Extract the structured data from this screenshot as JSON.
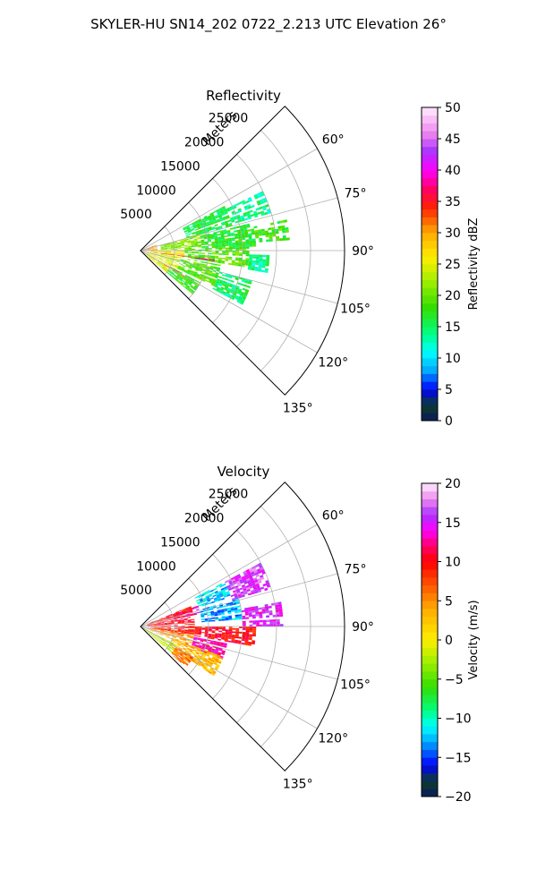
{
  "suptitle": "SKYLER-HU  SN14_202  0722_2.213 UTC Elevation 26°",
  "chart_data": [
    {
      "type": "ppi-sector",
      "title": "Reflectivity",
      "range_label": "Meters",
      "range_ticks": [
        "5000",
        "10000",
        "15000",
        "20000",
        "25000"
      ],
      "range_tick_values": [
        5000,
        10000,
        15000,
        20000,
        25000
      ],
      "r_max": 30000,
      "azimuth_ticks": [
        "60°",
        "75°",
        "90°",
        "105°",
        "120°",
        "135°"
      ],
      "azimuth_tick_values": [
        60,
        75,
        90,
        105,
        120,
        135
      ],
      "azimuth_range": [
        45,
        135
      ],
      "grid": true,
      "colorbar": {
        "label": "Reflectivity dBZ",
        "min": 0,
        "max": 50,
        "ticks": [
          "0",
          "5",
          "10",
          "15",
          "20",
          "25",
          "30",
          "35",
          "40",
          "45",
          "50"
        ],
        "tick_values": [
          0,
          5,
          10,
          15,
          20,
          25,
          30,
          35,
          40,
          45,
          50
        ],
        "color_stops": [
          {
            "value": 0,
            "color": "#0a1a5c"
          },
          {
            "value": 2.5,
            "color": "#0d3d2a"
          },
          {
            "value": 5,
            "color": "#0000ff"
          },
          {
            "value": 8,
            "color": "#00a8ff"
          },
          {
            "value": 11,
            "color": "#00ffff"
          },
          {
            "value": 14,
            "color": "#00ff80"
          },
          {
            "value": 18,
            "color": "#33dd00"
          },
          {
            "value": 22,
            "color": "#99ee00"
          },
          {
            "value": 26,
            "color": "#ffee00"
          },
          {
            "value": 30,
            "color": "#ffaa00"
          },
          {
            "value": 34,
            "color": "#ff2200"
          },
          {
            "value": 37,
            "color": "#ff0066"
          },
          {
            "value": 40,
            "color": "#ff00ff"
          },
          {
            "value": 43,
            "color": "#aa33ff"
          },
          {
            "value": 46,
            "color": "#ee88ee"
          },
          {
            "value": 50,
            "color": "#ffeeff"
          }
        ]
      },
      "echo_regions": [
        {
          "az": [
            62,
            75
          ],
          "r": [
            7000,
            14000
          ],
          "value": 16
        },
        {
          "az": [
            64,
            74
          ],
          "r": [
            14000,
            20000
          ],
          "value": 14
        },
        {
          "az": [
            75,
            88
          ],
          "r": [
            3000,
            9000
          ],
          "value": 21
        },
        {
          "az": [
            76,
            88
          ],
          "r": [
            9000,
            17000
          ],
          "value": 17
        },
        {
          "az": [
            78,
            86
          ],
          "r": [
            17000,
            22000
          ],
          "value": 18
        },
        {
          "az": [
            88,
            100
          ],
          "r": [
            1500,
            6500
          ],
          "value": 26
        },
        {
          "az": [
            88,
            100
          ],
          "r": [
            6500,
            16000
          ],
          "value": 19
        },
        {
          "az": [
            92,
            100
          ],
          "r": [
            16000,
            19000
          ],
          "value": 14
        },
        {
          "az": [
            100,
            116
          ],
          "r": [
            1000,
            6000
          ],
          "value": 24
        },
        {
          "az": [
            100,
            116
          ],
          "r": [
            6000,
            12000
          ],
          "value": 19
        },
        {
          "az": [
            104,
            118
          ],
          "r": [
            12000,
            17000
          ],
          "value": 15
        },
        {
          "az": [
            116,
            130
          ],
          "r": [
            500,
            5000
          ],
          "value": 25
        },
        {
          "az": [
            118,
            130
          ],
          "r": [
            5000,
            10000
          ],
          "value": 18
        },
        {
          "az": [
            70,
            90
          ],
          "r": [
            0,
            2500
          ],
          "value": 31
        },
        {
          "az": [
            96,
            98
          ],
          "r": [
            2000,
            11000
          ],
          "value": 36
        },
        {
          "az": [
            119,
            121
          ],
          "r": [
            1000,
            8000
          ],
          "value": 33
        }
      ]
    },
    {
      "type": "ppi-sector",
      "title": "Velocity",
      "range_label": "Meters",
      "range_ticks": [
        "5000",
        "10000",
        "15000",
        "20000",
        "25000"
      ],
      "range_tick_values": [
        5000,
        10000,
        15000,
        20000,
        25000
      ],
      "r_max": 30000,
      "azimuth_ticks": [
        "60°",
        "75°",
        "90°",
        "105°",
        "120°",
        "135°"
      ],
      "azimuth_tick_values": [
        60,
        75,
        90,
        105,
        120,
        135
      ],
      "azimuth_range": [
        45,
        135
      ],
      "grid": true,
      "colorbar": {
        "label": "Velocity (m/s)",
        "min": -20,
        "max": 20,
        "ticks": [
          "−20",
          "−15",
          "−10",
          "−5",
          "0",
          "5",
          "10",
          "15",
          "20"
        ],
        "tick_values": [
          -20,
          -15,
          -10,
          -5,
          0,
          5,
          10,
          15,
          20
        ],
        "color_stops": [
          {
            "value": -20,
            "color": "#0a1a5c"
          },
          {
            "value": -18,
            "color": "#0d3d2a"
          },
          {
            "value": -16,
            "color": "#0000ff"
          },
          {
            "value": -13,
            "color": "#00a8ff"
          },
          {
            "value": -11,
            "color": "#00ffff"
          },
          {
            "value": -9,
            "color": "#00ff80"
          },
          {
            "value": -6,
            "color": "#33dd00"
          },
          {
            "value": -3,
            "color": "#99ee00"
          },
          {
            "value": 0,
            "color": "#ffee00"
          },
          {
            "value": 4,
            "color": "#ffaa00"
          },
          {
            "value": 7,
            "color": "#ff5500"
          },
          {
            "value": 10,
            "color": "#ff0000"
          },
          {
            "value": 12,
            "color": "#ff0066"
          },
          {
            "value": 14,
            "color": "#ff00ff"
          },
          {
            "value": 16,
            "color": "#aa33ff"
          },
          {
            "value": 18,
            "color": "#ee88ee"
          },
          {
            "value": 20,
            "color": "#ffeeff"
          }
        ]
      },
      "echo_regions": [
        {
          "az": [
            62,
            72
          ],
          "r": [
            9000,
            14000
          ],
          "value": -12
        },
        {
          "az": [
            62,
            74
          ],
          "r": [
            14000,
            20000
          ],
          "value": 16
        },
        {
          "az": [
            70,
            78
          ],
          "r": [
            5000,
            9000
          ],
          "value": 13
        },
        {
          "az": [
            74,
            86
          ],
          "r": [
            9000,
            15000
          ],
          "value": -13
        },
        {
          "az": [
            80,
            90
          ],
          "r": [
            15000,
            21000
          ],
          "value": 15
        },
        {
          "az": [
            68,
            90
          ],
          "r": [
            1000,
            8000
          ],
          "value": 10
        },
        {
          "az": [
            90,
            100
          ],
          "r": [
            1500,
            8000
          ],
          "value": 9
        },
        {
          "az": [
            90,
            100
          ],
          "r": [
            8000,
            17000
          ],
          "value": 10
        },
        {
          "az": [
            100,
            112
          ],
          "r": [
            1000,
            8000
          ],
          "value": 5
        },
        {
          "az": [
            100,
            112
          ],
          "r": [
            8000,
            13000
          ],
          "value": 13
        },
        {
          "az": [
            110,
            124
          ],
          "r": [
            5000,
            13000
          ],
          "value": 3
        },
        {
          "az": [
            116,
            130
          ],
          "r": [
            500,
            6000
          ],
          "value": -2
        },
        {
          "az": [
            120,
            132
          ],
          "r": [
            6000,
            9000
          ],
          "value": 6
        }
      ]
    }
  ]
}
